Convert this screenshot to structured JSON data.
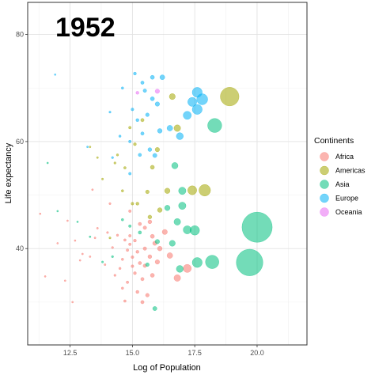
{
  "chart_data": {
    "type": "scatter",
    "year_label": "1952",
    "xlabel": "Log of Population",
    "ylabel": "Life expectancy",
    "xlim": [
      10.8,
      22.0
    ],
    "ylim": [
      22.0,
      86.0
    ],
    "x_ticks": [
      12.5,
      15.0,
      17.5,
      20.0
    ],
    "x_tick_labels": [
      "12.5",
      "15.0",
      "17.5",
      "20.0"
    ],
    "y_ticks": [
      40,
      60,
      80
    ],
    "y_tick_labels": [
      "40",
      "60",
      "80"
    ],
    "grid": true,
    "legend": {
      "title": "Continents",
      "placement": "right",
      "entries": [
        "Africa",
        "Americas",
        "Asia",
        "Europe",
        "Oceania"
      ]
    },
    "colors": {
      "Africa": "#F8766D",
      "Americas": "#A3A500",
      "Asia": "#00BF7D",
      "Europe": "#00B0F6",
      "Oceania": "#E76BF3"
    },
    "series": [
      {
        "name": "Africa",
        "points": [
          [
            11.3,
            46.5
          ],
          [
            11.5,
            34.8
          ],
          [
            12.0,
            41.0
          ],
          [
            12.3,
            34.0
          ],
          [
            12.4,
            45.2
          ],
          [
            12.6,
            30.0
          ],
          [
            12.7,
            41.5
          ],
          [
            12.9,
            37.8
          ],
          [
            13.0,
            39.0
          ],
          [
            13.3,
            38.5
          ],
          [
            13.4,
            51.0
          ],
          [
            13.5,
            42.0
          ],
          [
            13.6,
            43.8
          ],
          [
            13.9,
            37.0
          ],
          [
            14.0,
            43.0
          ],
          [
            14.1,
            48.4
          ],
          [
            14.2,
            40.2
          ],
          [
            14.3,
            35.0
          ],
          [
            14.4,
            42.5
          ],
          [
            14.5,
            36.3
          ],
          [
            14.6,
            32.6
          ],
          [
            14.6,
            38.0
          ],
          [
            14.7,
            41.6
          ],
          [
            14.7,
            30.2
          ],
          [
            14.8,
            39.7
          ],
          [
            14.8,
            33.7
          ],
          [
            14.9,
            47.0
          ],
          [
            14.9,
            42.4
          ],
          [
            14.9,
            40.8
          ],
          [
            15.0,
            38.4
          ],
          [
            15.0,
            36.7
          ],
          [
            15.1,
            41.5
          ],
          [
            15.1,
            35.4
          ],
          [
            15.2,
            39.4
          ],
          [
            15.2,
            31.9
          ],
          [
            15.3,
            44.6
          ],
          [
            15.3,
            37.3
          ],
          [
            15.4,
            34.3
          ],
          [
            15.4,
            30.0
          ],
          [
            15.5,
            43.9
          ],
          [
            15.5,
            40.0
          ],
          [
            15.5,
            36.8
          ],
          [
            15.6,
            31.3
          ],
          [
            15.7,
            45.0
          ],
          [
            15.7,
            38.5
          ],
          [
            15.8,
            42.3
          ],
          [
            15.8,
            35.0
          ],
          [
            15.9,
            41.0
          ],
          [
            16.0,
            37.5
          ],
          [
            16.1,
            40.0
          ],
          [
            16.3,
            43.1
          ],
          [
            16.5,
            38.7
          ],
          [
            16.8,
            34.5
          ],
          [
            17.2,
            36.3
          ]
        ]
      },
      {
        "name": "Americas",
        "points": [
          [
            13.3,
            59.0
          ],
          [
            13.6,
            57.0
          ],
          [
            13.8,
            53.0
          ],
          [
            14.1,
            42.0
          ],
          [
            14.3,
            56.0
          ],
          [
            14.4,
            57.5
          ],
          [
            14.6,
            50.8
          ],
          [
            14.7,
            55.1
          ],
          [
            14.9,
            62.6
          ],
          [
            15.0,
            48.4
          ],
          [
            15.1,
            59.5
          ],
          [
            15.2,
            48.4
          ],
          [
            15.4,
            64.0
          ],
          [
            15.6,
            50.6
          ],
          [
            15.7,
            45.9
          ],
          [
            15.8,
            55.2
          ],
          [
            16.0,
            58.5
          ],
          [
            16.1,
            47.2
          ],
          [
            16.4,
            50.8
          ],
          [
            16.6,
            68.4
          ],
          [
            16.8,
            62.5
          ],
          [
            17.4,
            50.9
          ],
          [
            17.9,
            50.9
          ],
          [
            18.9,
            68.4
          ]
        ]
      },
      {
        "name": "Asia",
        "points": [
          [
            11.6,
            56.0
          ],
          [
            12.0,
            47.0
          ],
          [
            12.8,
            45.0
          ],
          [
            13.3,
            42.2
          ],
          [
            13.8,
            37.5
          ],
          [
            14.2,
            38.5
          ],
          [
            14.6,
            45.4
          ],
          [
            14.9,
            44.2
          ],
          [
            15.3,
            43.0
          ],
          [
            15.6,
            37.0
          ],
          [
            15.9,
            28.8
          ],
          [
            16.0,
            41.3
          ],
          [
            16.4,
            47.6
          ],
          [
            16.6,
            41.0
          ],
          [
            16.7,
            55.5
          ],
          [
            16.8,
            45.0
          ],
          [
            16.9,
            36.2
          ],
          [
            17.0,
            50.8
          ],
          [
            17.0,
            48.0
          ],
          [
            17.2,
            43.5
          ],
          [
            17.5,
            43.4
          ],
          [
            17.6,
            37.4
          ],
          [
            18.2,
            37.5
          ],
          [
            18.3,
            63.0
          ],
          [
            19.7,
            37.4
          ],
          [
            20.0,
            44.0
          ]
        ]
      },
      {
        "name": "Europe",
        "points": [
          [
            11.9,
            72.5
          ],
          [
            13.2,
            59.0
          ],
          [
            14.1,
            65.5
          ],
          [
            14.2,
            57.0
          ],
          [
            14.5,
            61.0
          ],
          [
            14.6,
            70.0
          ],
          [
            14.9,
            54.0
          ],
          [
            14.9,
            60.0
          ],
          [
            15.0,
            66.0
          ],
          [
            15.1,
            72.7
          ],
          [
            15.2,
            64.0
          ],
          [
            15.3,
            57.5
          ],
          [
            15.4,
            61.5
          ],
          [
            15.4,
            71.0
          ],
          [
            15.5,
            69.5
          ],
          [
            15.6,
            65.0
          ],
          [
            15.7,
            58.5
          ],
          [
            15.8,
            68.0
          ],
          [
            15.8,
            72.0
          ],
          [
            15.9,
            57.4
          ],
          [
            16.0,
            67.0
          ],
          [
            16.1,
            62.0
          ],
          [
            16.2,
            72.0
          ],
          [
            16.5,
            62.5
          ],
          [
            16.9,
            61.0
          ],
          [
            17.2,
            64.9
          ],
          [
            17.4,
            67.4
          ],
          [
            17.6,
            66.0
          ],
          [
            17.6,
            69.2
          ],
          [
            17.8,
            67.9
          ]
        ]
      },
      {
        "name": "Oceania",
        "points": [
          [
            15.2,
            69.1
          ],
          [
            16.0,
            69.4
          ]
        ]
      }
    ]
  }
}
